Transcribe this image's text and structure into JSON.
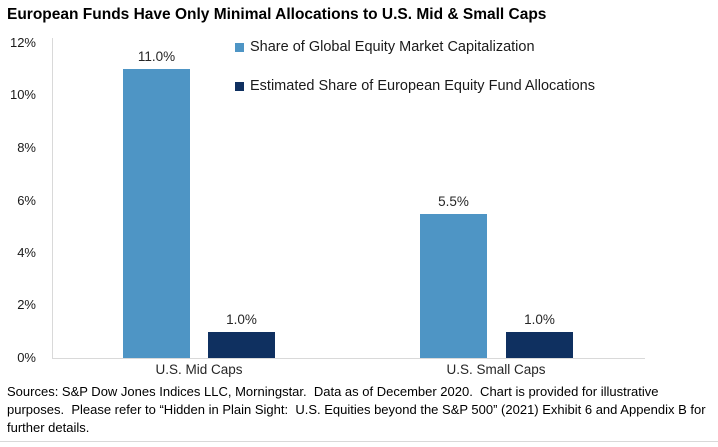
{
  "title": "European Funds Have Only Minimal Allocations to U.S. Mid & Small Caps",
  "legend": [
    {
      "label": "Share of Global Equity Market Capitalization",
      "color": "#4E95C5"
    },
    {
      "label": "Estimated Share of European Equity Fund Allocations",
      "color": "#0F3060"
    }
  ],
  "chart_data": {
    "type": "bar",
    "categories": [
      "U.S. Mid Caps",
      "U.S. Small Caps"
    ],
    "series": [
      {
        "name": "Share of Global Equity Market Capitalization",
        "color": "#4E95C5",
        "values": [
          11.0,
          5.5
        ],
        "labels": [
          "11.0%",
          "5.5%"
        ]
      },
      {
        "name": "Estimated Share of European Equity Fund Allocations",
        "color": "#0F3060",
        "values": [
          1.0,
          1.0
        ],
        "labels": [
          "1.0%",
          "1.0%"
        ]
      }
    ],
    "xlabel": "",
    "ylabel": "",
    "ylim": [
      0,
      12
    ],
    "yticks": [
      "0%",
      "2%",
      "4%",
      "6%",
      "8%",
      "10%",
      "12%"
    ],
    "grid": false,
    "legend_position": "top-right-inside"
  },
  "footer": {
    "text": "Sources: S&P Dow Jones Indices LLC, Morningstar.  Data as of December 2020.  Chart is provided for illustrative purposes.  Please refer to “Hidden in Plain Sight:  U.S. Equities beyond the S&P 500” (2021) Exhibit 6 and Appendix B for further details."
  },
  "colors": {
    "axis_line": "#D9D9D9",
    "text": "#000000"
  }
}
